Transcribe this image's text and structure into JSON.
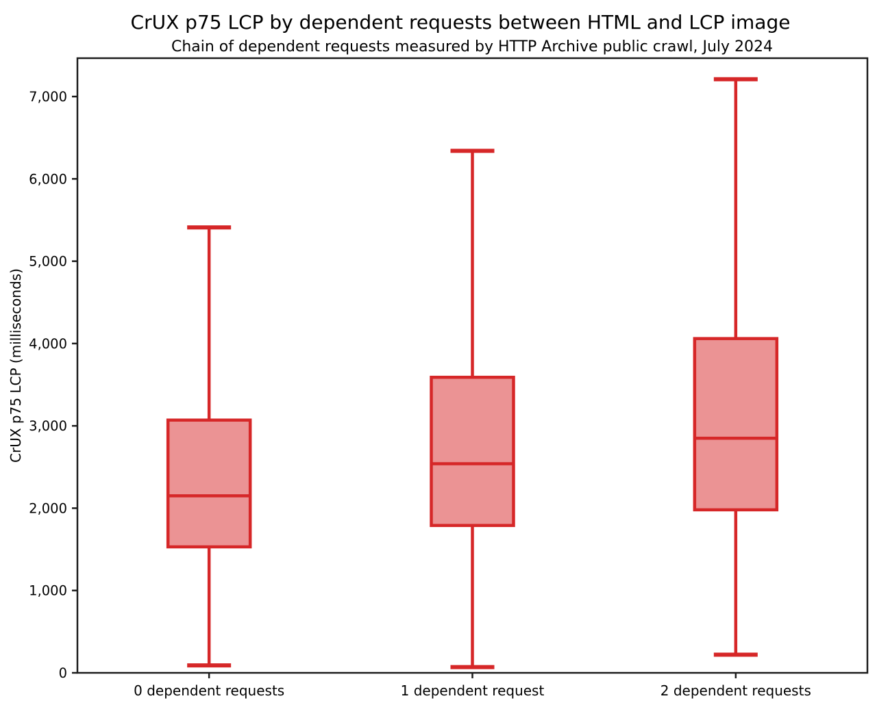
{
  "title": "CrUX p75 LCP by dependent requests between HTML and LCP image",
  "subtitle": "Chain of dependent requests measured by HTTP Archive public crawl, July 2024",
  "chart_data": {
    "type": "boxplot",
    "title": "CrUX p75 LCP by dependent requests between HTML and LCP image",
    "subtitle": "Chain of dependent requests measured by HTTP Archive public crawl, July 2024",
    "xlabel": "",
    "ylabel": "CrUX p75 LCP (milliseconds)",
    "categories": [
      "0 dependent requests",
      "1 dependent request",
      "2 dependent requests"
    ],
    "series": [
      {
        "category": "0 dependent requests",
        "whisker_low": 90,
        "q1": 1530,
        "median": 2150,
        "q3": 3070,
        "whisker_high": 5410
      },
      {
        "category": "1 dependent request",
        "whisker_low": 70,
        "q1": 1790,
        "median": 2540,
        "q3": 3590,
        "whisker_high": 6340
      },
      {
        "category": "2 dependent requests",
        "whisker_low": 220,
        "q1": 1980,
        "median": 2850,
        "q3": 4060,
        "whisker_high": 7210
      }
    ],
    "yticks": [
      0,
      1000,
      2000,
      3000,
      4000,
      5000,
      6000,
      7000
    ],
    "ytick_labels": [
      "0",
      "1,000",
      "2,000",
      "3,000",
      "4,000",
      "5,000",
      "6,000",
      "7,000"
    ],
    "ylim": [
      0,
      7466
    ],
    "grid": false,
    "legend": "none",
    "colors": {
      "box_edge": "#d62728",
      "box_fill": "#eb9394",
      "median": "#d62728",
      "whisker": "#d62728",
      "spine": "#1c1c1c",
      "text": "#000000"
    }
  }
}
